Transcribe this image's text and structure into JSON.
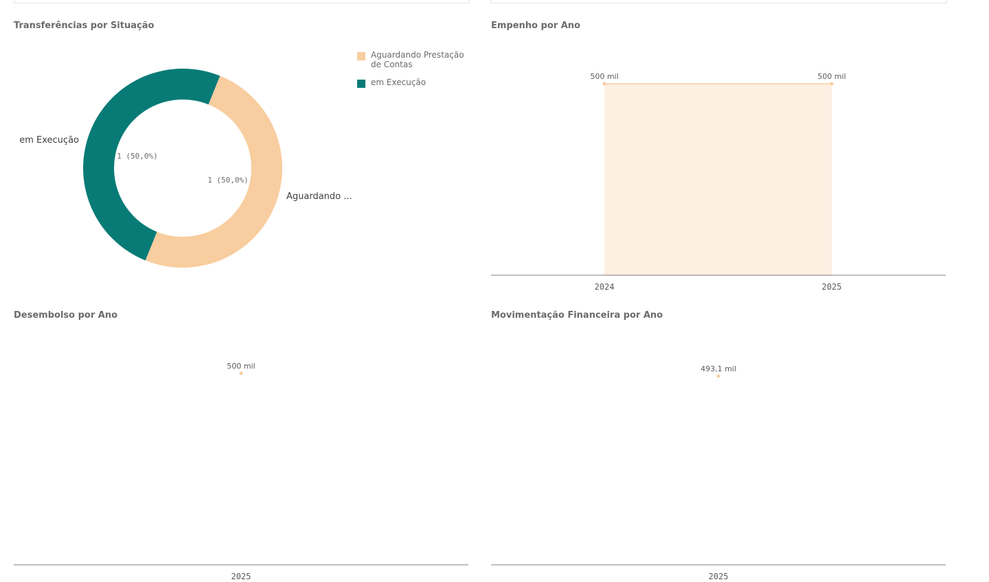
{
  "colors": {
    "aguardando": "#f8cd9f",
    "execucao": "#087b77",
    "area_fill": "#fdefe2",
    "area_line": "#f8cd9f",
    "axis": "#7f7f7f",
    "text": "#595959"
  },
  "panels": {
    "situacao": {
      "title": "Transferências por Situação"
    },
    "empenho": {
      "title": "Empenho por Ano"
    },
    "desembolso": {
      "title": "Desembolso por Ano"
    },
    "movimentacao": {
      "title": "Movimentação Financeira por Ano"
    }
  },
  "chart_data": [
    {
      "id": "situacao",
      "type": "pie",
      "title": "Transferências por Situação",
      "legend_position": "top-right",
      "slices": [
        {
          "label": "Aguardando Prestação de Contas",
          "outside_label": "Aguardando ...",
          "value": 1,
          "value_label": "1 (50,0%)",
          "color": "#f8cd9f"
        },
        {
          "label": "em Execução",
          "outside_label": "em Execução",
          "value": 1,
          "value_label": "1 (50,0%)",
          "color": "#087b77"
        }
      ]
    },
    {
      "id": "empenho",
      "type": "area",
      "title": "Empenho por Ano",
      "categories": [
        "2024",
        "2025"
      ],
      "values": [
        500000,
        500000
      ],
      "value_labels": [
        "500 mil",
        "500 mil"
      ],
      "ylim": [
        0,
        500000
      ]
    },
    {
      "id": "desembolso",
      "type": "line",
      "title": "Desembolso por Ano",
      "categories": [
        "2025"
      ],
      "values": [
        500000
      ],
      "value_labels": [
        "500 mil"
      ],
      "ylim": [
        0,
        500000
      ]
    },
    {
      "id": "movimentacao",
      "type": "line",
      "title": "Movimentação Financeira por Ano",
      "categories": [
        "2025"
      ],
      "values": [
        493100
      ],
      "value_labels": [
        "493,1 mil"
      ],
      "ylim": [
        0,
        493100
      ]
    }
  ]
}
